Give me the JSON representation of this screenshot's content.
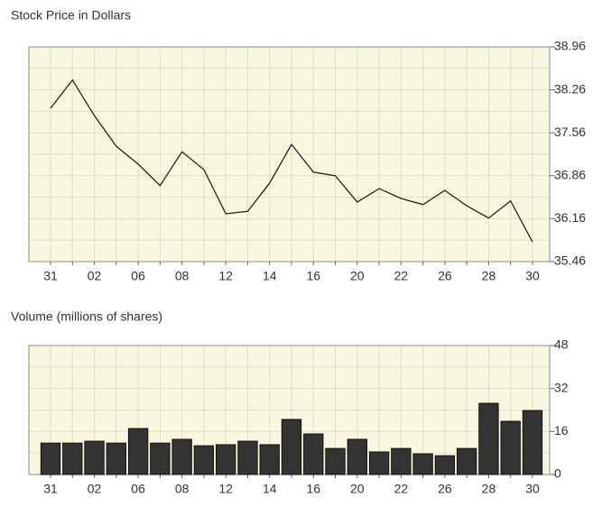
{
  "chart_data": [
    {
      "type": "line",
      "title": "Stock Price in Dollars",
      "categories": [
        "31",
        null,
        "02",
        null,
        "06",
        null,
        "08",
        null,
        "12",
        null,
        "14",
        null,
        "16",
        null,
        "20",
        null,
        "22",
        null,
        "26",
        null,
        "28",
        null,
        "30"
      ],
      "values": [
        37.96,
        38.42,
        37.84,
        37.34,
        37.05,
        36.7,
        37.25,
        36.96,
        36.24,
        36.28,
        36.74,
        37.37,
        36.92,
        36.86,
        36.43,
        36.65,
        36.49,
        36.39,
        36.62,
        36.37,
        36.17,
        36.45,
        35.78
      ],
      "color": "#222222",
      "ylim": [
        35.46,
        38.96
      ],
      "yticks": [
        35.46,
        36.16,
        36.86,
        37.56,
        38.26,
        38.96
      ],
      "grid": true
    },
    {
      "type": "bar",
      "title": "Volume (millions of shares)",
      "categories": [
        "31",
        null,
        "02",
        null,
        "06",
        null,
        "08",
        null,
        "12",
        null,
        "14",
        null,
        "16",
        null,
        "20",
        null,
        "22",
        null,
        "26",
        null,
        "28",
        null,
        "30"
      ],
      "values": [
        11.7,
        11.7,
        12.4,
        11.7,
        17.1,
        11.7,
        13.1,
        10.7,
        11.1,
        12.4,
        11.1,
        20.5,
        15.1,
        9.7,
        13.1,
        8.4,
        9.7,
        7.7,
        7.0,
        9.7,
        26.5,
        19.8,
        23.8
      ],
      "color": "#333333",
      "ylim": [
        0,
        48
      ],
      "yticks": [
        0,
        16,
        32,
        48
      ],
      "grid": true
    }
  ]
}
